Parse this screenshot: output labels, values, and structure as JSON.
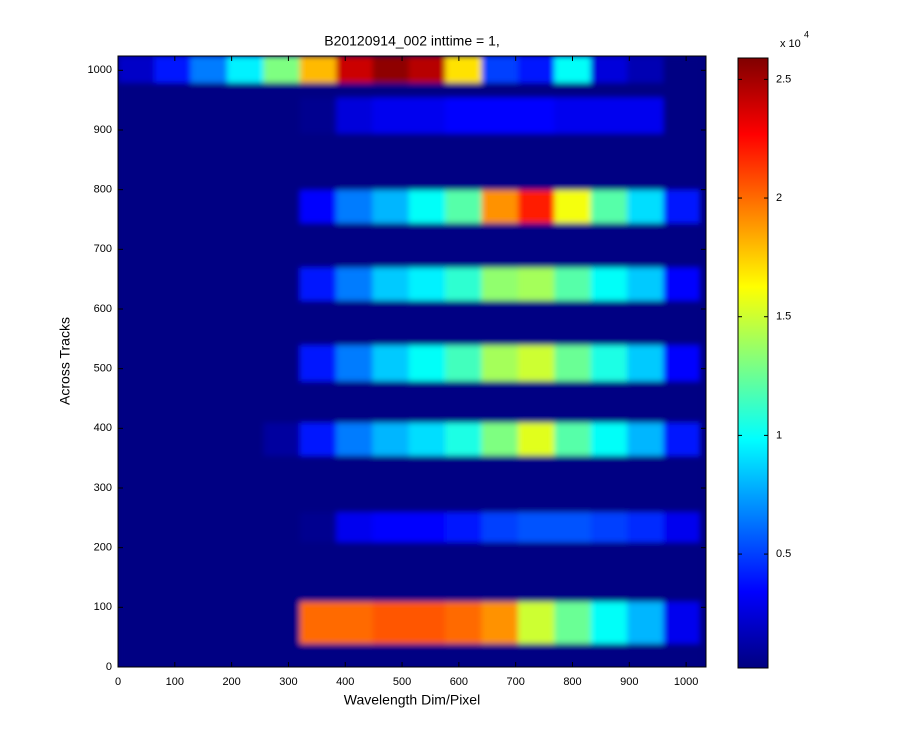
{
  "chart_data": {
    "type": "heatmap",
    "title": "B20120914_002 inttime = 1,",
    "x_label": "Wavelength Dim/Pixel",
    "y_label": "Across Tracks",
    "colormap": "jet",
    "xlim": [
      0,
      1035
    ],
    "ylim": [
      0,
      1024
    ],
    "xticks": [
      0,
      100,
      200,
      300,
      400,
      500,
      600,
      700,
      800,
      900,
      1000
    ],
    "yticks": [
      0,
      100,
      200,
      300,
      400,
      500,
      600,
      700,
      800,
      900,
      1000
    ],
    "x_edges": [
      0,
      64,
      128,
      192,
      256,
      320,
      384,
      448,
      512,
      576,
      640,
      704,
      768,
      832,
      896,
      960,
      1024
    ],
    "y_edges": [
      0,
      40,
      110,
      210,
      260,
      355,
      410,
      480,
      540,
      615,
      670,
      745,
      800,
      895,
      955,
      980,
      1024
    ],
    "values": [
      [
        300,
        300,
        300,
        300,
        300,
        300,
        300,
        300,
        300,
        300,
        300,
        300,
        300,
        300,
        300,
        300
      ],
      [
        300,
        300,
        300,
        300,
        300,
        20000,
        20000,
        20500,
        20500,
        20000,
        19000,
        15000,
        12500,
        10000,
        8000,
        3000
      ],
      [
        300,
        300,
        300,
        300,
        300,
        300,
        300,
        300,
        300,
        300,
        300,
        300,
        300,
        300,
        300,
        300
      ],
      [
        300,
        300,
        300,
        300,
        300,
        600,
        3000,
        3500,
        3500,
        4000,
        5000,
        5500,
        5500,
        5000,
        4500,
        3000
      ],
      [
        300,
        300,
        300,
        300,
        300,
        300,
        300,
        300,
        300,
        300,
        300,
        300,
        300,
        300,
        300,
        300
      ],
      [
        300,
        300,
        300,
        300,
        1000,
        4000,
        6500,
        8000,
        9000,
        10500,
        13000,
        15500,
        12000,
        10000,
        8000,
        4000
      ],
      [
        300,
        300,
        300,
        300,
        300,
        300,
        300,
        300,
        300,
        300,
        300,
        300,
        300,
        300,
        300,
        300
      ],
      [
        300,
        300,
        300,
        300,
        300,
        4000,
        6500,
        8500,
        10000,
        11500,
        14000,
        15000,
        12500,
        10500,
        8500,
        3500
      ],
      [
        300,
        300,
        300,
        300,
        300,
        300,
        300,
        300,
        300,
        300,
        300,
        300,
        300,
        300,
        300,
        300
      ],
      [
        300,
        300,
        300,
        300,
        300,
        4000,
        6500,
        8500,
        9500,
        11000,
        13500,
        14000,
        12000,
        10000,
        8500,
        3500
      ],
      [
        300,
        300,
        300,
        300,
        300,
        300,
        300,
        300,
        300,
        300,
        300,
        300,
        300,
        300,
        300,
        300
      ],
      [
        300,
        300,
        300,
        300,
        300,
        3500,
        6500,
        8000,
        10000,
        12000,
        19000,
        22000,
        16000,
        12000,
        9000,
        4000
      ],
      [
        300,
        300,
        300,
        300,
        300,
        300,
        300,
        300,
        300,
        300,
        300,
        300,
        300,
        300,
        300,
        300
      ],
      [
        300,
        300,
        300,
        300,
        300,
        600,
        2500,
        3000,
        3000,
        3500,
        3500,
        3500,
        3000,
        3000,
        3000,
        300
      ],
      [
        300,
        300,
        300,
        300,
        300,
        300,
        300,
        300,
        300,
        300,
        300,
        300,
        300,
        300,
        300,
        300
      ],
      [
        2000,
        4000,
        6500,
        9500,
        13000,
        18000,
        24000,
        25500,
        24500,
        17000,
        5000,
        4000,
        10000,
        2500,
        1500,
        300
      ]
    ],
    "colorbar": {
      "clim": [
        200,
        25900
      ],
      "ticks": [
        {
          "value": 5000,
          "label": "0.5"
        },
        {
          "value": 10000,
          "label": "1"
        },
        {
          "value": 15000,
          "label": "1.5"
        },
        {
          "value": 20000,
          "label": "2"
        },
        {
          "value": 25000,
          "label": "2.5"
        }
      ],
      "exponent_label": "x 10",
      "exponent": "4"
    }
  }
}
